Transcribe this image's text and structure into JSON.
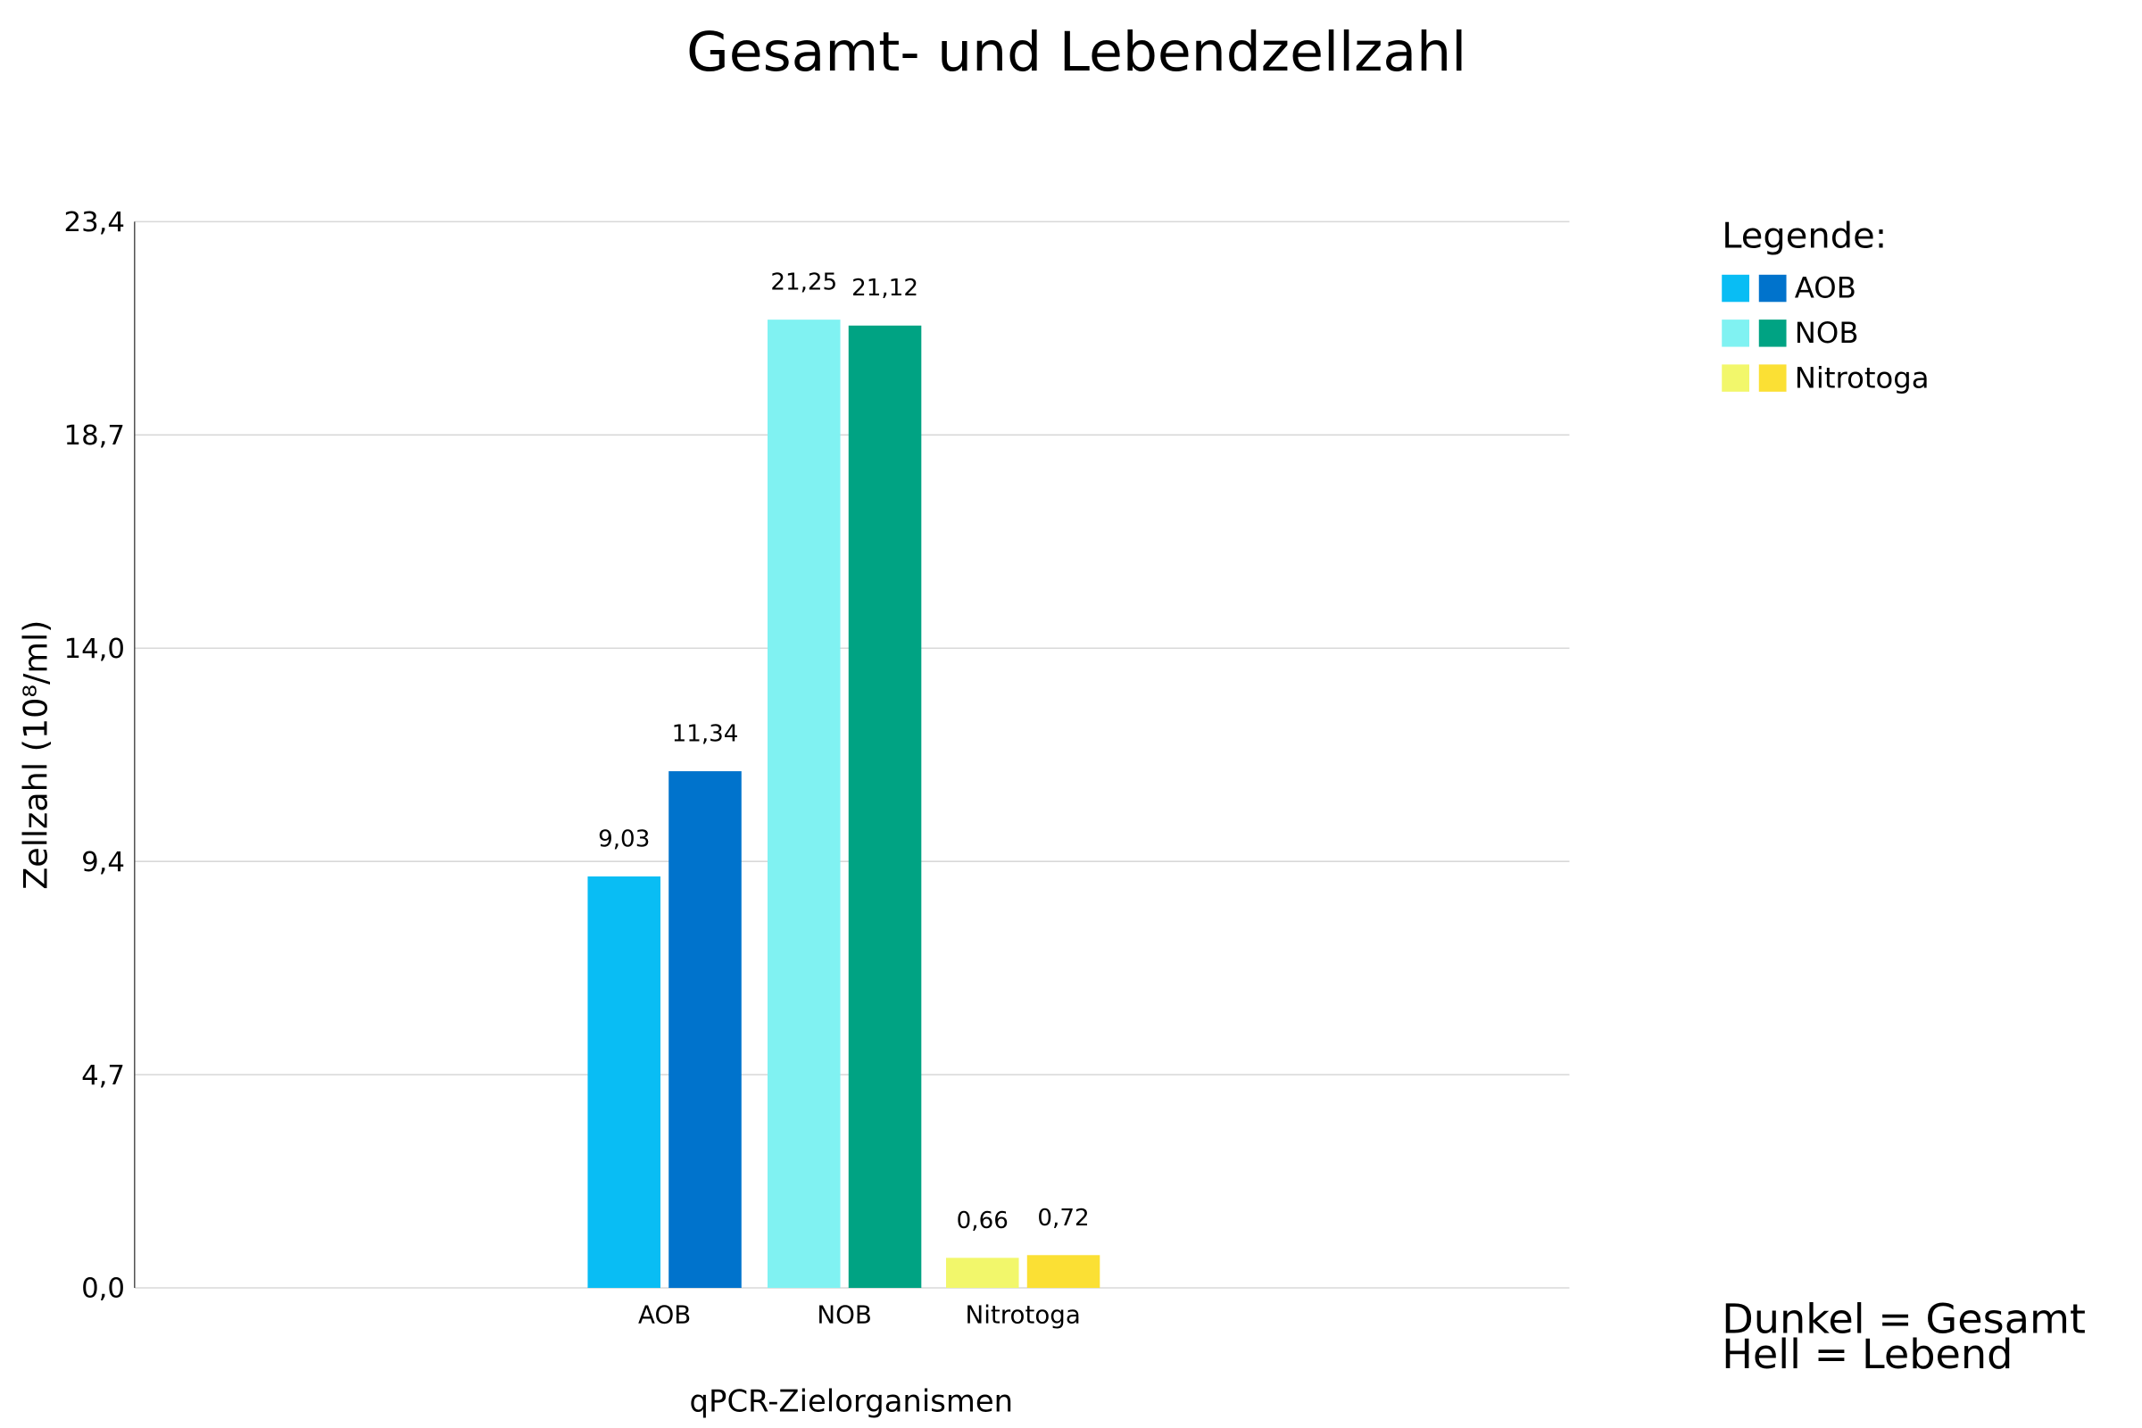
{
  "chart_data": {
    "type": "bar",
    "title": "Gesamt- und Lebendzellzahl",
    "xlabel": "qPCR-Zielorganismen",
    "ylabel": "Zellzahl (10⁸/ml)",
    "ylim": [
      0,
      23.4
    ],
    "yticks": [
      "0,0",
      "4,7",
      "9,4",
      "14,0",
      "18,7",
      "23,4"
    ],
    "ytick_values": [
      0,
      4.68,
      9.36,
      14.04,
      18.72,
      23.4
    ],
    "grid": true,
    "categories": [
      "AOB",
      "NOB",
      "Nitrotoga"
    ],
    "series": [
      {
        "name": "Lebend",
        "values": [
          9.03,
          21.25,
          0.66
        ],
        "labels": [
          "9,03",
          "21,25",
          "0,66"
        ],
        "colors": [
          "#09BDF4",
          "#80F2F2",
          "#F2F76B"
        ]
      },
      {
        "name": "Gesamt",
        "values": [
          11.34,
          21.12,
          0.72
        ],
        "labels": [
          "11,34",
          "21,12",
          "0,72"
        ],
        "colors": [
          "#0073CC",
          "#00A383",
          "#FBE034"
        ]
      }
    ],
    "legend": {
      "title": "Legende:",
      "placement": "right",
      "entries": [
        {
          "label": "AOB",
          "colors": [
            "#09BDF4",
            "#0073CC"
          ]
        },
        {
          "label": "NOB",
          "colors": [
            "#80F2F2",
            "#00A383"
          ]
        },
        {
          "label": "Nitrotoga",
          "colors": [
            "#F2F76B",
            "#FBE034"
          ]
        }
      ]
    },
    "notes": [
      "Dunkel = Gesamt",
      "Hell = Lebend"
    ]
  }
}
